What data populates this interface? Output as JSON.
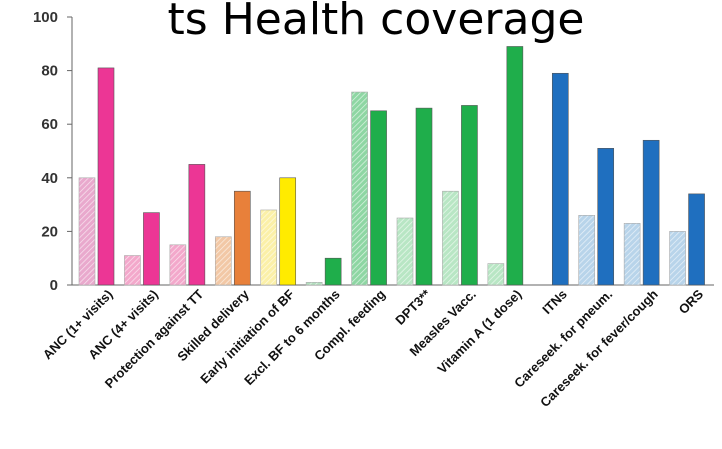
{
  "title_fragment": "ts Health coverage",
  "chart_data": {
    "type": "bar",
    "title": "",
    "xlabel": "",
    "ylabel": "",
    "ylim": [
      0,
      100
    ],
    "yticks": [
      0,
      20,
      40,
      60,
      80,
      100
    ],
    "grid": false,
    "legend": "none",
    "categories": [
      "ANC (1+ visits)",
      "ANC (4+ visits)",
      "Protection against TT",
      "Skilled delivery",
      "Early initiation of BF",
      "Excl. BF to 6 months",
      "Compl. feeding",
      "DPT3**",
      "Measles Vacc.",
      "Vitamin A (1 dose)",
      "ITNs",
      "Careseek. for pneum.",
      "Careseek. for fever/cough",
      "ORS"
    ],
    "series": [
      {
        "values": [
          40,
          11,
          15,
          18,
          28,
          1,
          72,
          25,
          35,
          8,
          null,
          26,
          23,
          20
        ]
      },
      {
        "values": [
          81,
          27,
          45,
          35,
          40,
          10,
          65,
          66,
          67,
          89,
          79,
          51,
          54,
          34
        ]
      }
    ],
    "colors": {
      "light": [
        "#e9a9cd",
        "#f3a8cb",
        "#f3a8cb",
        "#f2c8a6",
        "#fbf0a8",
        "#b3e0bf",
        "#8ed6a3",
        "#b8e6c4",
        "#b8e6c4",
        "#b8e6c4",
        "#b8d4ea",
        "#b8d4ea",
        "#b8d4ea",
        "#b8d4ea"
      ],
      "dark": [
        "#ec3695",
        "#ec3695",
        "#ec3695",
        "#e8803a",
        "#ffeb00",
        "#1fae4b",
        "#1fae4b",
        "#1fae4b",
        "#1fae4b",
        "#1fae4b",
        "#1f6fbf",
        "#1f6fbf",
        "#1f6fbf",
        "#1f6fbf"
      ]
    }
  }
}
